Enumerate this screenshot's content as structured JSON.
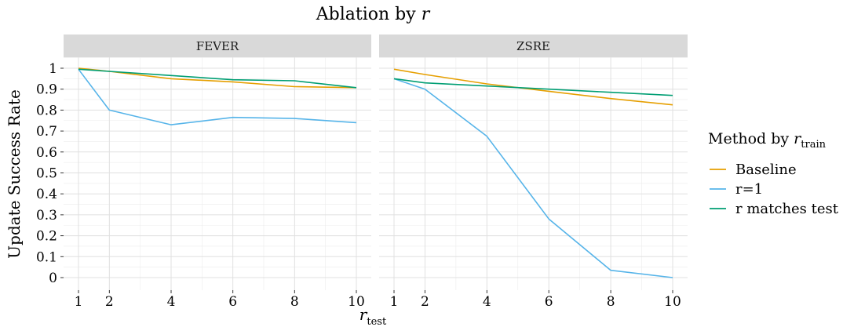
{
  "chart_data": {
    "type": "line",
    "title": "Ablation by r",
    "title_prefix": "Ablation by",
    "title_var": "r",
    "xlabel_var": "r",
    "xlabel_sub": "test",
    "ylabel": "Update Success Rate",
    "legend": {
      "title_prefix": "Method by",
      "title_var": "r",
      "title_sub": "train",
      "placement": "right"
    },
    "xlim": [
      1,
      10
    ],
    "ylim": [
      0,
      1
    ],
    "x_ticks": [
      1,
      2,
      4,
      6,
      8,
      10
    ],
    "y_ticks": [
      0,
      0.1,
      0.2,
      0.3,
      0.4,
      0.5,
      0.6,
      0.7,
      0.8,
      0.9,
      1
    ],
    "grid": true,
    "x": [
      1,
      2,
      4,
      6,
      8,
      10
    ],
    "colors": {
      "Baseline": "#E69F00",
      "r=1": "#56B4E9",
      "r matches test": "#009E73"
    },
    "panels": [
      {
        "name": "FEVER",
        "series": [
          {
            "name": "Baseline",
            "values": [
              1.0,
              0.985,
              0.95,
              0.935,
              0.912,
              0.907
            ]
          },
          {
            "name": "r=1",
            "values": [
              0.995,
              0.8,
              0.73,
              0.765,
              0.76,
              0.74
            ]
          },
          {
            "name": "r matches test",
            "values": [
              0.995,
              0.985,
              0.965,
              0.945,
              0.94,
              0.907
            ]
          }
        ]
      },
      {
        "name": "ZSRE",
        "series": [
          {
            "name": "Baseline",
            "values": [
              0.995,
              0.97,
              0.925,
              0.89,
              0.855,
              0.825
            ]
          },
          {
            "name": "r=1",
            "values": [
              0.95,
              0.9,
              0.675,
              0.28,
              0.035,
              0.0
            ]
          },
          {
            "name": "r matches test",
            "values": [
              0.95,
              0.93,
              0.915,
              0.9,
              0.885,
              0.87
            ]
          }
        ]
      }
    ]
  }
}
